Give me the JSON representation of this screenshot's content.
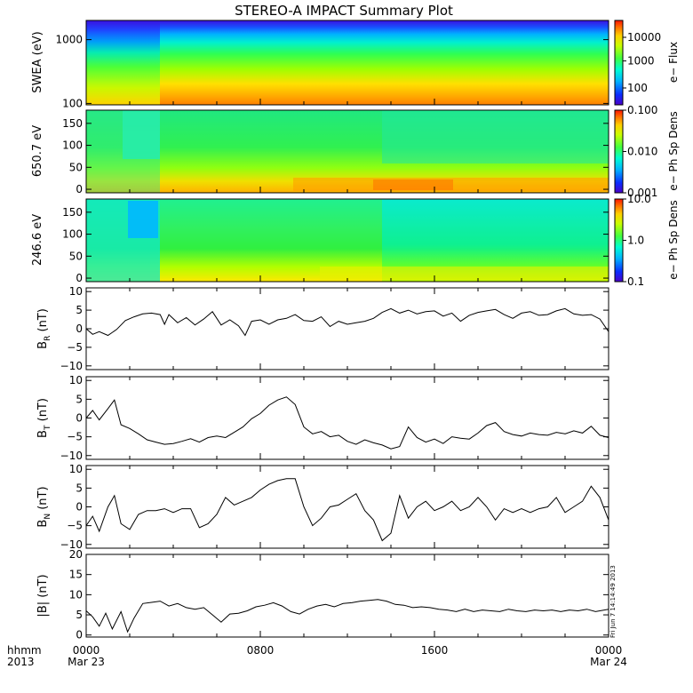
{
  "chart_data": {
    "type": "multi-panel-timeseries",
    "title": "STEREO-A IMPACT Summary Plot",
    "xaxis": {
      "prefix_top": "hhmm",
      "prefix_bottom": "2013",
      "ticks": [
        {
          "hour": 0,
          "label": "0000",
          "date": "Mar 23"
        },
        {
          "hour": 8,
          "label": "0800",
          "date": ""
        },
        {
          "hour": 16,
          "label": "1600",
          "date": ""
        },
        {
          "hour": 24,
          "label": "0000",
          "date": "Mar 24"
        }
      ],
      "range_hours": [
        0,
        24
      ]
    },
    "timestamp": "Fri Jun  7 14:14:49 2013",
    "spectrograms": [
      {
        "id": "swea",
        "ylabel": "SWEA (eV)",
        "scale": "log",
        "ylim": [
          95,
          2000
        ],
        "yticks": [
          100,
          1000
        ],
        "ytick_labels": [
          "100",
          "1000"
        ],
        "colorbar": {
          "label": "e− Flux",
          "ticks": [
            "100",
            "1000",
            "10000"
          ],
          "tick_fracs": [
            0.2,
            0.52,
            0.8
          ]
        }
      },
      {
        "id": "pad650",
        "ylabel": "650.7 eV",
        "scale": "linear",
        "ylim": [
          -8,
          180
        ],
        "yticks": [
          0,
          50,
          100,
          150
        ],
        "ytick_labels": [
          "0",
          "50",
          "100",
          "150"
        ],
        "colorbar": {
          "label": "e− Ph Sp Dens",
          "ticks": [
            "0.001",
            "0.010",
            "0.100"
          ],
          "tick_fracs": [
            0.0,
            0.5,
            1.0
          ]
        }
      },
      {
        "id": "pad246",
        "ylabel": "246.6 eV",
        "scale": "linear",
        "ylim": [
          -8,
          180
        ],
        "yticks": [
          0,
          50,
          100,
          150
        ],
        "ytick_labels": [
          "0",
          "50",
          "100",
          "150"
        ],
        "colorbar": {
          "label": "e− Ph Sp Dens",
          "ticks": [
            "0.1",
            "1.0",
            "10.0"
          ],
          "tick_fracs": [
            0.0,
            0.5,
            1.0
          ]
        }
      }
    ],
    "line_panels": [
      {
        "id": "br",
        "ylabel": "B",
        "subscript": "R",
        "unit": " (nT)",
        "ylim": [
          -11,
          11
        ],
        "yticks": [
          -10,
          -5,
          0,
          5,
          10
        ],
        "ytick_labels": [
          "−10",
          "−5",
          "0",
          "5",
          "10"
        ],
        "x": [
          0,
          0.3,
          0.6,
          1.0,
          1.4,
          1.8,
          2.2,
          2.6,
          3.0,
          3.4,
          3.6,
          3.8,
          4.2,
          4.6,
          5.0,
          5.4,
          5.8,
          6.2,
          6.6,
          7.0,
          7.3,
          7.6,
          8.0,
          8.4,
          8.8,
          9.2,
          9.6,
          10.0,
          10.4,
          10.8,
          11.2,
          11.6,
          12.0,
          12.4,
          12.8,
          13.2,
          13.6,
          14.0,
          14.4,
          14.8,
          15.2,
          15.6,
          16.0,
          16.4,
          16.8,
          17.2,
          17.6,
          18.0,
          18.4,
          18.8,
          19.2,
          19.6,
          20.0,
          20.4,
          20.8,
          21.2,
          21.6,
          22.0,
          22.4,
          22.8,
          23.2,
          23.6,
          24.0
        ],
        "y": [
          0,
          -1.5,
          -0.8,
          -1.8,
          -0.2,
          2.2,
          3.2,
          4.0,
          4.2,
          3.8,
          1.2,
          3.8,
          1.6,
          3.0,
          1.0,
          2.6,
          4.6,
          1.0,
          2.4,
          0.8,
          -1.8,
          2.0,
          2.4,
          1.2,
          2.4,
          2.8,
          3.8,
          2.2,
          2.0,
          3.2,
          0.6,
          2.0,
          1.2,
          1.6,
          2.0,
          2.8,
          4.4,
          5.4,
          4.2,
          5.0,
          4.0,
          4.6,
          4.8,
          3.4,
          4.2,
          2.0,
          3.6,
          4.4,
          4.8,
          5.2,
          3.8,
          2.8,
          4.2,
          4.6,
          3.6,
          3.8,
          4.8,
          5.4,
          4.0,
          3.6,
          3.8,
          2.6,
          -0.8
        ]
      },
      {
        "id": "bt",
        "ylabel": "B",
        "subscript": "T",
        "unit": " (nT)",
        "ylim": [
          -11,
          11
        ],
        "yticks": [
          -10,
          -5,
          0,
          5,
          10
        ],
        "ytick_labels": [
          "−10",
          "−5",
          "0",
          "5",
          "10"
        ],
        "x": [
          0,
          0.3,
          0.6,
          1.0,
          1.3,
          1.6,
          2.0,
          2.4,
          2.8,
          3.2,
          3.6,
          4.0,
          4.4,
          4.8,
          5.2,
          5.6,
          6.0,
          6.4,
          6.8,
          7.2,
          7.6,
          8.0,
          8.4,
          8.8,
          9.2,
          9.6,
          10.0,
          10.4,
          10.8,
          11.2,
          11.6,
          12.0,
          12.4,
          12.8,
          13.2,
          13.6,
          14.0,
          14.4,
          14.8,
          15.2,
          15.6,
          16.0,
          16.4,
          16.8,
          17.2,
          17.6,
          18.0,
          18.4,
          18.8,
          19.2,
          19.6,
          20.0,
          20.4,
          20.8,
          21.2,
          21.6,
          22.0,
          22.4,
          22.8,
          23.2,
          23.6,
          24.0
        ],
        "y": [
          0,
          2.0,
          -0.5,
          2.5,
          4.8,
          -1.8,
          -2.8,
          -4.2,
          -5.8,
          -6.4,
          -7.0,
          -6.8,
          -6.2,
          -5.5,
          -6.4,
          -5.2,
          -4.8,
          -5.2,
          -3.8,
          -2.4,
          -0.2,
          1.2,
          3.4,
          4.8,
          5.6,
          3.6,
          -2.4,
          -4.2,
          -3.6,
          -5.0,
          -4.6,
          -6.2,
          -7.0,
          -5.8,
          -6.6,
          -7.2,
          -8.2,
          -7.6,
          -2.4,
          -5.2,
          -6.4,
          -5.6,
          -6.8,
          -5.0,
          -5.4,
          -5.6,
          -4.0,
          -2.0,
          -1.2,
          -3.6,
          -4.4,
          -4.8,
          -4.0,
          -4.4,
          -4.6,
          -3.8,
          -4.2,
          -3.4,
          -4.0,
          -2.2,
          -4.6,
          -5.2
        ]
      },
      {
        "id": "bn",
        "ylabel": "B",
        "subscript": "N",
        "unit": " (nT)",
        "ylim": [
          -11,
          11
        ],
        "yticks": [
          -10,
          -5,
          0,
          5,
          10
        ],
        "ytick_labels": [
          "−10",
          "−5",
          "0",
          "5",
          "10"
        ],
        "x": [
          0,
          0.3,
          0.6,
          1.0,
          1.3,
          1.6,
          2.0,
          2.4,
          2.8,
          3.2,
          3.6,
          4.0,
          4.4,
          4.8,
          5.2,
          5.6,
          6.0,
          6.4,
          6.8,
          7.2,
          7.6,
          8.0,
          8.4,
          8.8,
          9.2,
          9.6,
          10.0,
          10.4,
          10.8,
          11.2,
          11.6,
          12.0,
          12.4,
          12.8,
          13.2,
          13.6,
          14.0,
          14.4,
          14.8,
          15.2,
          15.6,
          16.0,
          16.4,
          16.8,
          17.2,
          17.6,
          18.0,
          18.4,
          18.8,
          19.2,
          19.6,
          20.0,
          20.4,
          20.8,
          21.2,
          21.6,
          22.0,
          22.4,
          22.8,
          23.2,
          23.6,
          24.0
        ],
        "y": [
          -5,
          -2.5,
          -6.5,
          0,
          3.0,
          -4.5,
          -6.0,
          -2.0,
          -1.0,
          -1.0,
          -0.5,
          -1.5,
          -0.5,
          -0.5,
          -5.5,
          -4.5,
          -2.0,
          2.5,
          0.5,
          1.5,
          2.5,
          4.5,
          6.0,
          7.0,
          7.5,
          7.5,
          0,
          -5.0,
          -3.0,
          0,
          0.5,
          2.0,
          3.5,
          -1.0,
          -3.5,
          -9.0,
          -7.0,
          3.0,
          -3.0,
          0,
          1.5,
          -1.0,
          0,
          1.5,
          -1.0,
          0,
          2.5,
          0,
          -3.5,
          -0.5,
          -1.5,
          -0.5,
          -1.5,
          -0.5,
          0,
          2.5,
          -1.5,
          0,
          1.5,
          5.5,
          2.5,
          -3.5
        ]
      },
      {
        "id": "bmag",
        "ylabel": "|B| (nT)",
        "subscript": "",
        "unit": "",
        "ylim": [
          -0.5,
          20
        ],
        "yticks": [
          0,
          5,
          10,
          15,
          20
        ],
        "ytick_labels": [
          "0",
          "5",
          "10",
          "15",
          "20"
        ],
        "x": [
          0,
          0.3,
          0.6,
          0.9,
          1.2,
          1.6,
          1.9,
          2.2,
          2.6,
          3.0,
          3.4,
          3.8,
          4.2,
          4.6,
          5.0,
          5.4,
          5.8,
          6.2,
          6.6,
          7.0,
          7.4,
          7.8,
          8.2,
          8.6,
          9.0,
          9.4,
          9.8,
          10.2,
          10.6,
          11.0,
          11.4,
          11.8,
          12.2,
          12.6,
          13.0,
          13.4,
          13.8,
          14.2,
          14.6,
          15.0,
          15.4,
          15.8,
          16.2,
          16.6,
          17.0,
          17.4,
          17.8,
          18.2,
          18.6,
          19.0,
          19.4,
          19.8,
          20.2,
          20.6,
          21.0,
          21.4,
          21.8,
          22.2,
          22.6,
          23.0,
          23.4,
          23.8,
          24.0
        ],
        "y": [
          6.0,
          4.5,
          2.2,
          5.4,
          1.5,
          5.8,
          0.8,
          4.2,
          7.8,
          8.1,
          8.4,
          7.2,
          7.8,
          6.8,
          6.4,
          6.8,
          5.0,
          3.2,
          5.2,
          5.4,
          6.0,
          7.0,
          7.4,
          8.0,
          7.2,
          5.8,
          5.2,
          6.4,
          7.2,
          7.6,
          7.0,
          7.8,
          8.0,
          8.4,
          8.6,
          8.8,
          8.4,
          7.6,
          7.4,
          6.8,
          7.0,
          6.8,
          6.4,
          6.2,
          5.8,
          6.4,
          5.8,
          6.2,
          6.0,
          5.8,
          6.4,
          6.0,
          5.8,
          6.2,
          6.0,
          6.2,
          5.8,
          6.2,
          6.0,
          6.4,
          5.8,
          6.2,
          6.4
        ]
      }
    ]
  }
}
